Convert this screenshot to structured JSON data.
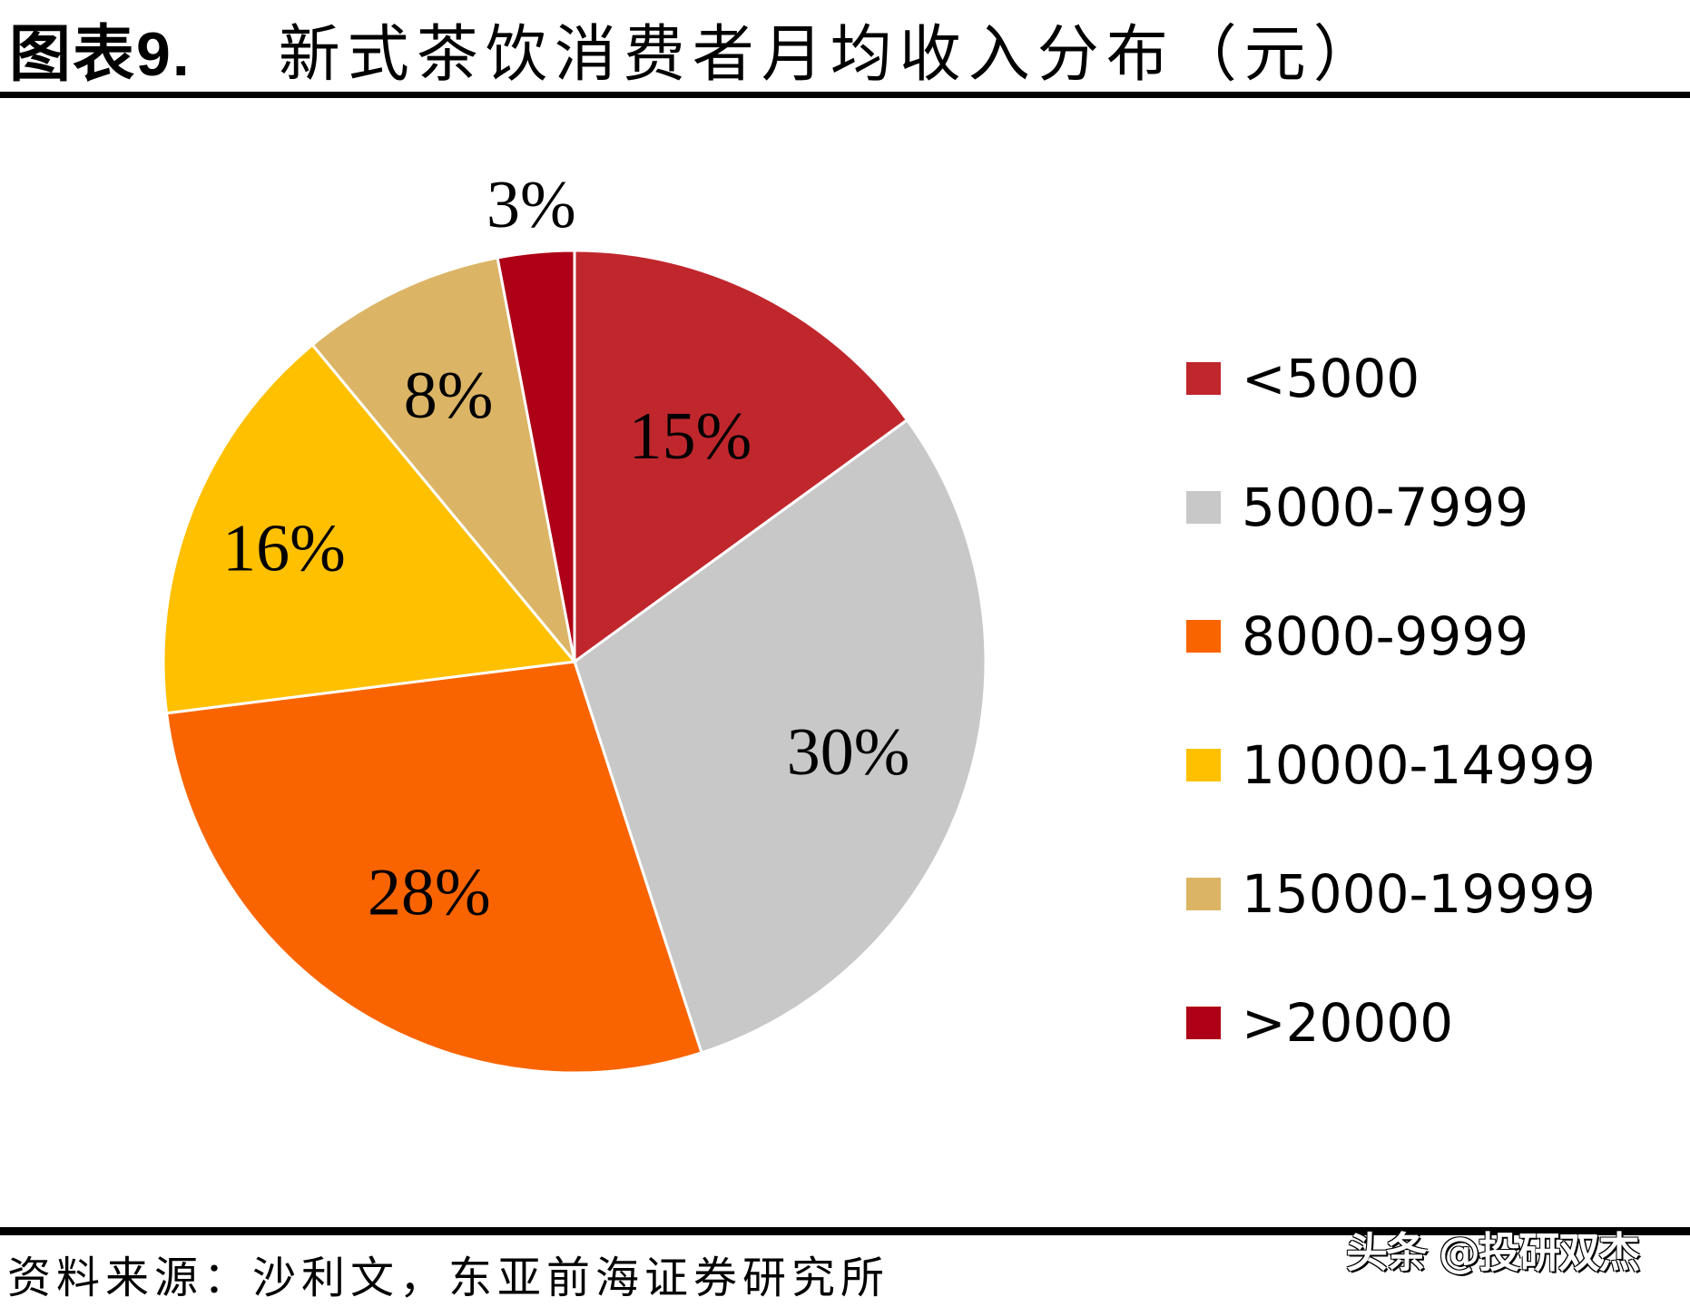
{
  "header": {
    "figure_number": "图表9.",
    "title": "新式茶饮消费者月均收入分布（元）"
  },
  "footer": {
    "source": "资料来源：沙利文，东亚前海证券研究所",
    "watermark": "头条 @投研双杰"
  },
  "colors": {
    "lt5000": "#C0272D",
    "r5000_7999": "#C8C8C8",
    "r8000_9999": "#F96400",
    "r10000_14999": "#FFC000",
    "r15000_19999": "#DBB466",
    "gt20000": "#AE0016"
  },
  "chart_data": {
    "type": "pie",
    "title": "新式茶饮消费者月均收入分布（元）",
    "categories": [
      "<5000",
      "5000-7999",
      "8000-9999",
      "10000-14999",
      "15000-19999",
      ">20000"
    ],
    "values": [
      15,
      30,
      28,
      16,
      8,
      3
    ],
    "labels": [
      "15%",
      "30%",
      "28%",
      "16%",
      "8%",
      "3%"
    ],
    "colors": [
      "#C0272D",
      "#C8C8C8",
      "#F96400",
      "#FFC000",
      "#DBB466",
      "#AE0016"
    ],
    "start_angle": "12 o'clock, clockwise",
    "legend_position": "right",
    "unit": "%"
  },
  "legend": {
    "items": [
      {
        "label": "<5000",
        "color": "#C0272D"
      },
      {
        "label": "5000-7999",
        "color": "#C8C8C8"
      },
      {
        "label": "8000-9999",
        "color": "#F96400"
      },
      {
        "label": "10000-14999",
        "color": "#FFC000"
      },
      {
        "label": "15000-19999",
        "color": "#DBB466"
      },
      {
        "label": ">20000",
        "color": "#AE0016"
      }
    ]
  }
}
